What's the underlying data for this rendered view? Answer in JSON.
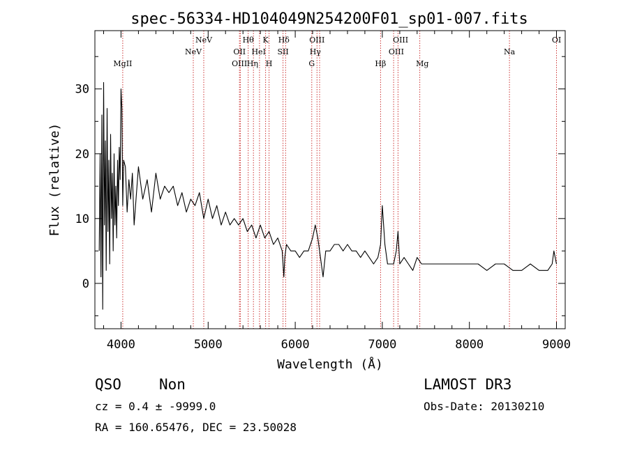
{
  "chart_data": {
    "type": "line",
    "title": "spec-56334-HD104049N254200F01_sp01-007.fits",
    "xlabel": "Wavelength (Å)",
    "ylabel": "Flux (relative)",
    "xlim": [
      3700,
      9100
    ],
    "ylim": [
      -7,
      39
    ],
    "xticks": [
      4000,
      5000,
      6000,
      7000,
      8000,
      9000
    ],
    "yticks": [
      0,
      10,
      20,
      30
    ],
    "series": [
      {
        "name": "spectrum",
        "x": [
          3750,
          3760,
          3770,
          3780,
          3790,
          3800,
          3810,
          3820,
          3830,
          3840,
          3850,
          3860,
          3870,
          3880,
          3890,
          3900,
          3910,
          3920,
          3930,
          3940,
          3950,
          3960,
          3970,
          3980,
          3990,
          4000,
          4010,
          4020,
          4030,
          4050,
          4070,
          4090,
          4110,
          4130,
          4150,
          4200,
          4250,
          4300,
          4350,
          4400,
          4450,
          4500,
          4550,
          4600,
          4650,
          4700,
          4750,
          4800,
          4850,
          4900,
          4950,
          5000,
          5050,
          5100,
          5150,
          5200,
          5250,
          5300,
          5350,
          5400,
          5450,
          5500,
          5550,
          5600,
          5650,
          5700,
          5750,
          5800,
          5850,
          5870,
          5880,
          5900,
          5950,
          6000,
          6050,
          6100,
          6150,
          6200,
          6230,
          6260,
          6300,
          6320,
          6350,
          6400,
          6450,
          6500,
          6550,
          6600,
          6650,
          6700,
          6750,
          6800,
          6850,
          6900,
          6950,
          6980,
          7000,
          7030,
          7060,
          7100,
          7130,
          7160,
          7180,
          7200,
          7250,
          7300,
          7350,
          7400,
          7450,
          7500,
          7600,
          7700,
          7800,
          7900,
          8000,
          8100,
          8200,
          8300,
          8400,
          8500,
          8600,
          8700,
          8800,
          8900,
          8950,
          8970,
          9000
        ],
        "y": [
          5,
          20,
          1,
          26,
          -4,
          31,
          9,
          22,
          2,
          27,
          8,
          19,
          3,
          23,
          10,
          17,
          5,
          20,
          9,
          15,
          7,
          19,
          12,
          21,
          16,
          30,
          27,
          12,
          19,
          18,
          11,
          16,
          13,
          17,
          9,
          18,
          13,
          16,
          11,
          17,
          13,
          15,
          14,
          15,
          12,
          14,
          11,
          13,
          12,
          14,
          10,
          13,
          10,
          12,
          9,
          11,
          9,
          10,
          9,
          10,
          8,
          9,
          7,
          9,
          7,
          8,
          6,
          7,
          5,
          1,
          4,
          6,
          5,
          5,
          4,
          5,
          5,
          7,
          9,
          7,
          3,
          1,
          5,
          5,
          6,
          6,
          5,
          6,
          5,
          5,
          4,
          5,
          4,
          3,
          4,
          6,
          12,
          6,
          3,
          3,
          3,
          5,
          8,
          3,
          4,
          3,
          2,
          4,
          3,
          3,
          3,
          3,
          3,
          3,
          3,
          3,
          2,
          3,
          3,
          2,
          2,
          3,
          2,
          2,
          3,
          5,
          3
        ]
      }
    ],
    "line_labels": [
      {
        "name": "MgII",
        "x": 4020,
        "row": 3
      },
      {
        "name": "NeV",
        "x": 4830,
        "row": 2
      },
      {
        "name": "NeV",
        "x": 4950,
        "row": 1
      },
      {
        "name": "OII",
        "x": 5360,
        "row": 2
      },
      {
        "name": "OIII",
        "x": 5360,
        "row": 3
      },
      {
        "name": "Hθ",
        "x": 5460,
        "row": 1
      },
      {
        "name": "Hη",
        "x": 5510,
        "row": 3
      },
      {
        "name": "HeI",
        "x": 5580,
        "row": 2
      },
      {
        "name": "K",
        "x": 5660,
        "row": 1
      },
      {
        "name": "H",
        "x": 5700,
        "row": 3
      },
      {
        "name": "Hδ",
        "x": 5870,
        "row": 1
      },
      {
        "name": "SII",
        "x": 5860,
        "row": 2
      },
      {
        "name": "OIII",
        "x": 6250,
        "row": 1
      },
      {
        "name": "Hγ",
        "x": 6230,
        "row": 2
      },
      {
        "name": "G",
        "x": 6190,
        "row": 3
      },
      {
        "name": "Hβ",
        "x": 6980,
        "row": 3
      },
      {
        "name": "OIII",
        "x": 7210,
        "row": 1
      },
      {
        "name": "OIII",
        "x": 7160,
        "row": 2
      },
      {
        "name": "Mg",
        "x": 7460,
        "row": 3
      },
      {
        "name": "Na",
        "x": 8460,
        "row": 2
      },
      {
        "name": "OI",
        "x": 9000,
        "row": 1
      }
    ],
    "line_markers": [
      4020,
      4830,
      4950,
      5360,
      5370,
      5460,
      5520,
      5590,
      5660,
      5700,
      5860,
      5890,
      6190,
      6250,
      6280,
      6980,
      7130,
      7180,
      7430,
      8460,
      9000
    ],
    "line_color": "#cc3333"
  },
  "footer": {
    "class_label": "QSO",
    "subclass_label": "Non",
    "cz_text": "cz = 0.4 ± -9999.0",
    "coords_text": "RA = 160.65476, DEC =  23.50028",
    "survey": "LAMOST DR3",
    "obs_date": "Obs-Date: 20130210"
  }
}
